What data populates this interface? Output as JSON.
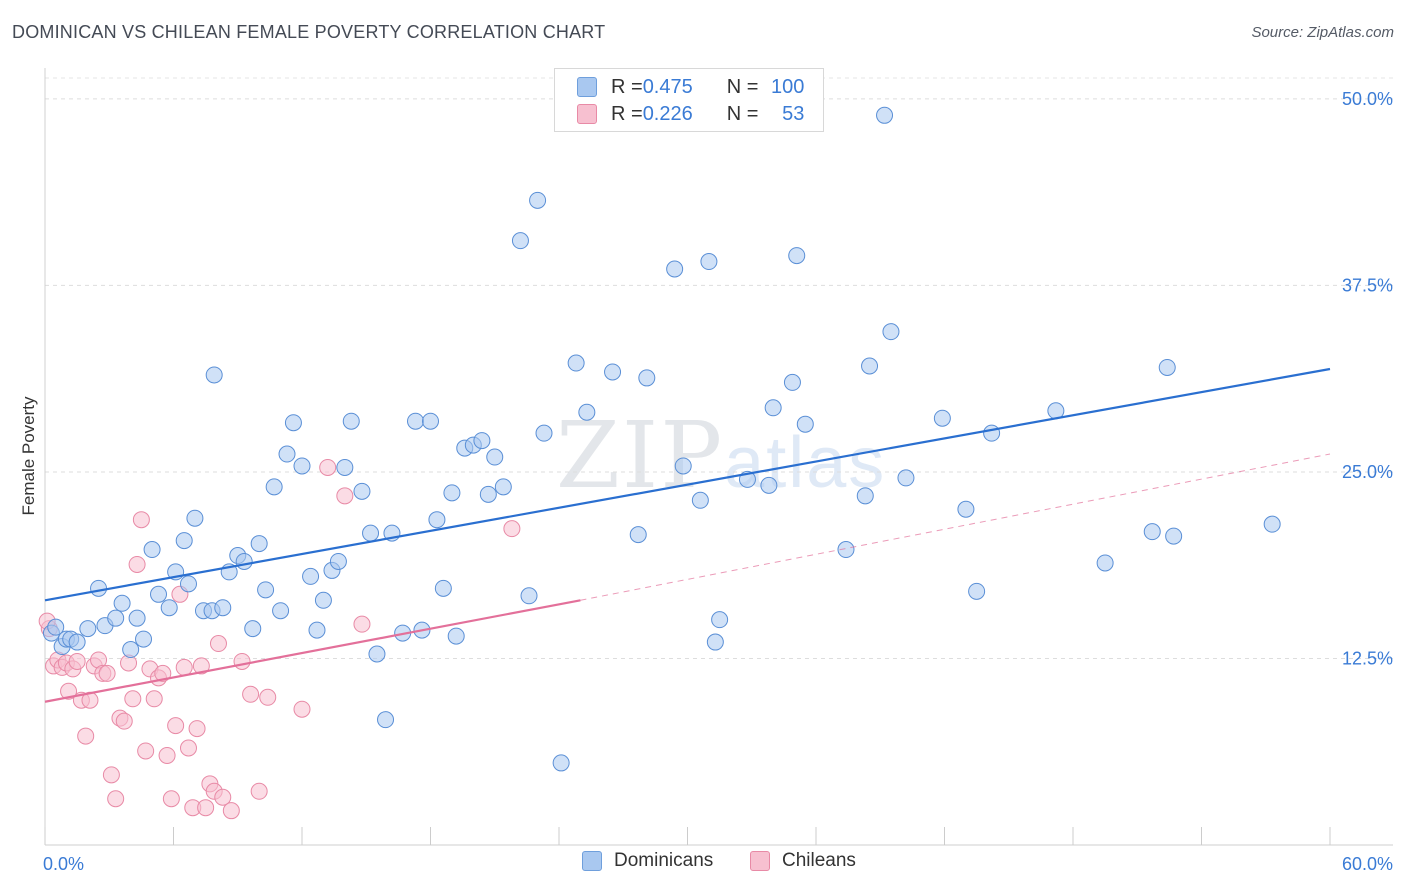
{
  "title": "DOMINICAN VS CHILEAN FEMALE POVERTY CORRELATION CHART",
  "source": "Source: ZipAtlas.com",
  "watermark": {
    "zip": "ZIP",
    "atlas": "atlas"
  },
  "legend": {
    "rows": [
      {
        "r_label": "R = ",
        "r_value": "0.475",
        "n_label": "N = ",
        "n_value": "100",
        "color": "#a9c8f0",
        "border": "#6f9fdc"
      },
      {
        "r_label": "R = ",
        "r_value": "0.226",
        "n_label": "N = ",
        "n_value": "53",
        "color": "#f7c0d0",
        "border": "#e88aa6"
      }
    ]
  },
  "bottom_legend": [
    "Dominicans",
    "Chileans"
  ],
  "chart_data": {
    "type": "scatter",
    "title": "DOMINICAN VS CHILEAN FEMALE POVERTY CORRELATION CHART",
    "xlabel": "",
    "ylabel": "Female Poverty",
    "xlim": [
      0,
      60
    ],
    "ylim": [
      0,
      50
    ],
    "x_tick_labels": [
      "0.0%",
      "60.0%"
    ],
    "y_ticks": [
      12.5,
      25.0,
      37.5,
      50.0
    ],
    "y_tick_labels": [
      "12.5%",
      "25.0%",
      "37.5%",
      "50.0%"
    ],
    "grid": true,
    "legend_position": "top-center",
    "series": [
      {
        "name": "Dominicans",
        "color": "#a9c8f0",
        "stroke": "#5a8fd6",
        "trend": {
          "x": [
            0,
            60
          ],
          "y": [
            16.4,
            31.9
          ],
          "color": "#2a6fd0"
        },
        "points": [
          [
            0.3,
            14.2
          ],
          [
            0.5,
            14.6
          ],
          [
            0.8,
            13.3
          ],
          [
            1.0,
            13.8
          ],
          [
            1.2,
            13.8
          ],
          [
            1.5,
            13.6
          ],
          [
            2.0,
            14.5
          ],
          [
            2.5,
            17.2
          ],
          [
            2.8,
            14.7
          ],
          [
            3.3,
            15.2
          ],
          [
            3.6,
            16.2
          ],
          [
            4.0,
            13.1
          ],
          [
            4.3,
            15.2
          ],
          [
            4.6,
            13.8
          ],
          [
            5.0,
            19.8
          ],
          [
            5.3,
            16.8
          ],
          [
            5.8,
            15.9
          ],
          [
            6.1,
            18.3
          ],
          [
            6.5,
            20.4
          ],
          [
            6.7,
            17.5
          ],
          [
            7.0,
            21.9
          ],
          [
            7.4,
            15.7
          ],
          [
            7.8,
            15.7
          ],
          [
            7.9,
            31.5
          ],
          [
            8.3,
            15.9
          ],
          [
            8.6,
            18.3
          ],
          [
            9.0,
            19.4
          ],
          [
            9.3,
            19.0
          ],
          [
            9.7,
            14.5
          ],
          [
            10.0,
            20.2
          ],
          [
            10.3,
            17.1
          ],
          [
            10.7,
            24.0
          ],
          [
            11.0,
            15.7
          ],
          [
            11.3,
            26.2
          ],
          [
            11.6,
            28.3
          ],
          [
            12.0,
            25.4
          ],
          [
            12.4,
            18.0
          ],
          [
            12.7,
            14.4
          ],
          [
            13.0,
            16.4
          ],
          [
            13.4,
            18.4
          ],
          [
            13.7,
            19.0
          ],
          [
            14.0,
            25.3
          ],
          [
            14.3,
            28.4
          ],
          [
            14.8,
            23.7
          ],
          [
            15.2,
            20.9
          ],
          [
            15.5,
            12.8
          ],
          [
            15.9,
            8.4
          ],
          [
            16.2,
            20.9
          ],
          [
            16.7,
            14.2
          ],
          [
            17.3,
            28.4
          ],
          [
            17.6,
            14.4
          ],
          [
            18.0,
            28.4
          ],
          [
            18.3,
            21.8
          ],
          [
            18.6,
            17.2
          ],
          [
            19.0,
            23.6
          ],
          [
            19.2,
            14.0
          ],
          [
            19.6,
            26.6
          ],
          [
            20.0,
            26.8
          ],
          [
            20.4,
            27.1
          ],
          [
            20.7,
            23.5
          ],
          [
            21.0,
            26.0
          ],
          [
            21.4,
            24.0
          ],
          [
            22.2,
            40.5
          ],
          [
            22.6,
            16.7
          ],
          [
            23.0,
            43.2
          ],
          [
            23.3,
            27.6
          ],
          [
            24.1,
            5.5
          ],
          [
            24.8,
            32.3
          ],
          [
            25.3,
            29.0
          ],
          [
            26.5,
            31.7
          ],
          [
            27.7,
            20.8
          ],
          [
            28.1,
            31.3
          ],
          [
            29.4,
            38.6
          ],
          [
            29.8,
            25.4
          ],
          [
            30.6,
            23.1
          ],
          [
            31.0,
            39.1
          ],
          [
            31.3,
            13.6
          ],
          [
            31.5,
            15.1
          ],
          [
            32.8,
            24.5
          ],
          [
            33.8,
            24.1
          ],
          [
            34.0,
            29.3
          ],
          [
            34.9,
            31.0
          ],
          [
            35.1,
            39.5
          ],
          [
            35.5,
            28.2
          ],
          [
            37.4,
            19.8
          ],
          [
            38.3,
            23.4
          ],
          [
            38.5,
            32.1
          ],
          [
            39.2,
            48.9
          ],
          [
            39.5,
            34.4
          ],
          [
            40.2,
            24.6
          ],
          [
            41.9,
            28.6
          ],
          [
            43.0,
            22.5
          ],
          [
            43.5,
            17.0
          ],
          [
            44.2,
            27.6
          ],
          [
            47.2,
            29.1
          ],
          [
            49.5,
            18.9
          ],
          [
            51.7,
            21.0
          ],
          [
            52.4,
            32.0
          ],
          [
            52.7,
            20.7
          ],
          [
            57.3,
            21.5
          ]
        ]
      },
      {
        "name": "Chileans",
        "color": "#f7c0d0",
        "stroke": "#e88aa6",
        "trend": {
          "x": [
            0,
            25
          ],
          "y": [
            9.6,
            16.4
          ],
          "color": "#e3709a",
          "extended_to": [
            60,
            26.2
          ]
        },
        "points": [
          [
            0.2,
            14.5
          ],
          [
            0.4,
            12.0
          ],
          [
            0.6,
            12.4
          ],
          [
            0.8,
            11.9
          ],
          [
            1.0,
            12.2
          ],
          [
            1.1,
            10.3
          ],
          [
            1.3,
            11.8
          ],
          [
            1.5,
            12.3
          ],
          [
            1.7,
            9.7
          ],
          [
            1.9,
            7.3
          ],
          [
            2.1,
            9.7
          ],
          [
            2.3,
            12.0
          ],
          [
            2.5,
            12.4
          ],
          [
            2.7,
            11.5
          ],
          [
            2.9,
            11.5
          ],
          [
            3.1,
            4.7
          ],
          [
            3.3,
            3.1
          ],
          [
            3.5,
            8.5
          ],
          [
            3.7,
            8.3
          ],
          [
            3.9,
            12.2
          ],
          [
            4.1,
            9.8
          ],
          [
            4.3,
            18.8
          ],
          [
            4.5,
            21.8
          ],
          [
            4.7,
            6.3
          ],
          [
            4.9,
            11.8
          ],
          [
            5.1,
            9.8
          ],
          [
            5.3,
            11.2
          ],
          [
            5.5,
            11.5
          ],
          [
            5.7,
            6.0
          ],
          [
            5.9,
            3.1
          ],
          [
            6.1,
            8.0
          ],
          [
            6.3,
            16.8
          ],
          [
            6.5,
            11.9
          ],
          [
            6.7,
            6.5
          ],
          [
            6.9,
            2.5
          ],
          [
            7.1,
            7.8
          ],
          [
            7.3,
            12.0
          ],
          [
            7.5,
            2.5
          ],
          [
            7.7,
            4.1
          ],
          [
            7.9,
            3.6
          ],
          [
            8.1,
            13.5
          ],
          [
            8.3,
            3.2
          ],
          [
            8.7,
            2.3
          ],
          [
            9.2,
            12.3
          ],
          [
            9.6,
            10.1
          ],
          [
            10.0,
            3.6
          ],
          [
            10.4,
            9.9
          ],
          [
            12.0,
            9.1
          ],
          [
            13.2,
            25.3
          ],
          [
            14.0,
            23.4
          ],
          [
            14.8,
            14.8
          ],
          [
            21.8,
            21.2
          ],
          [
            0.1,
            15.0
          ]
        ]
      }
    ]
  }
}
